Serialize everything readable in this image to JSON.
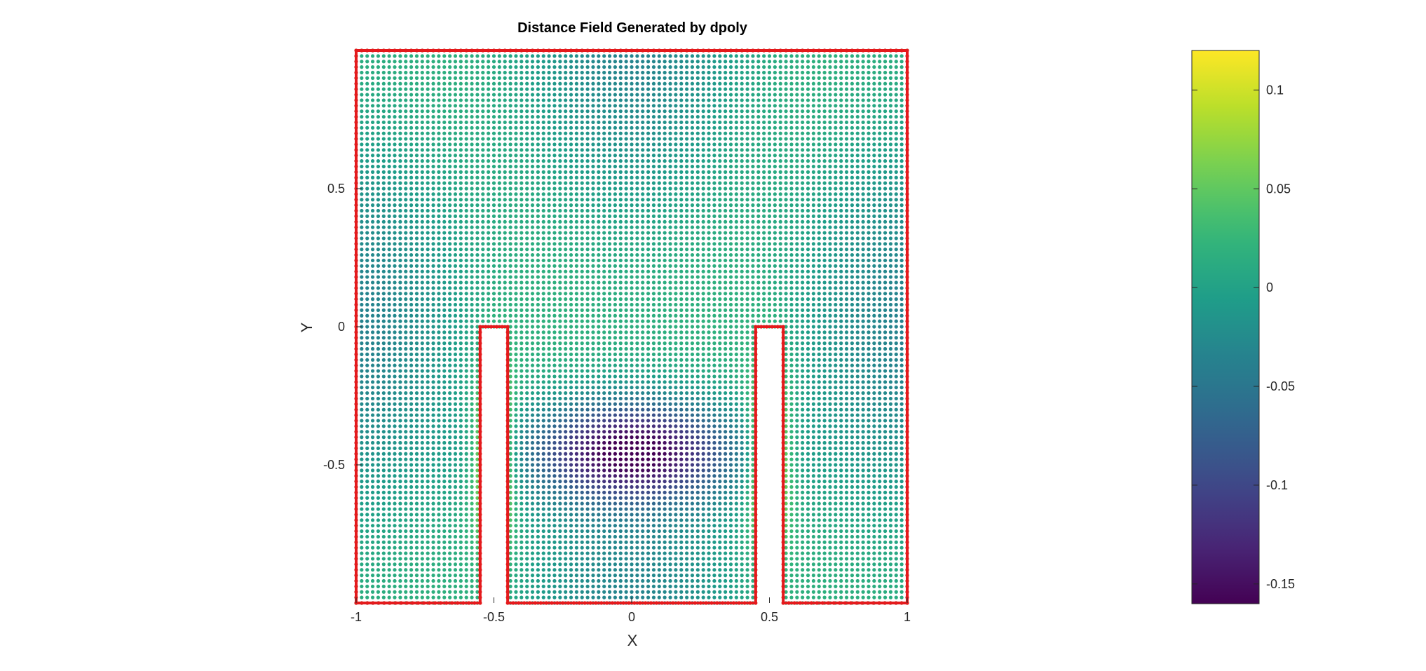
{
  "chart_data": {
    "type": "scatter",
    "title": "Distance Field Generated by dpoly",
    "xlabel": "X",
    "ylabel": "Y",
    "xlim": [
      -1,
      1
    ],
    "ylim": [
      -1,
      1
    ],
    "xticks": [
      -1,
      -0.5,
      0,
      0.5,
      1
    ],
    "xtick_labels": [
      "-1",
      "-0.5",
      "0",
      "0.5",
      "1"
    ],
    "yticks": [
      -0.5,
      0,
      0.5
    ],
    "ytick_labels": [
      "-0.5",
      "0",
      "0.5"
    ],
    "grid_spacing": 0.02,
    "polygon": {
      "color": "#e41a1c",
      "vertices": [
        [
          -1,
          -1
        ],
        [
          -0.55,
          -1
        ],
        [
          -0.55,
          0
        ],
        [
          -0.45,
          0
        ],
        [
          -0.45,
          -1
        ],
        [
          0.45,
          -1
        ],
        [
          0.45,
          0
        ],
        [
          0.55,
          0
        ],
        [
          0.55,
          -1
        ],
        [
          1,
          -1
        ],
        [
          1,
          1
        ],
        [
          -1,
          1
        ]
      ]
    },
    "colorbar": {
      "colormap": "viridis",
      "range": [
        -0.16,
        0.12
      ],
      "ticks": [
        -0.15,
        -0.1,
        -0.05,
        0,
        0.05,
        0.1
      ],
      "tick_labels": [
        "-0.15",
        "-0.1",
        "-0.05",
        "0",
        "0.05",
        "0.1"
      ]
    }
  }
}
